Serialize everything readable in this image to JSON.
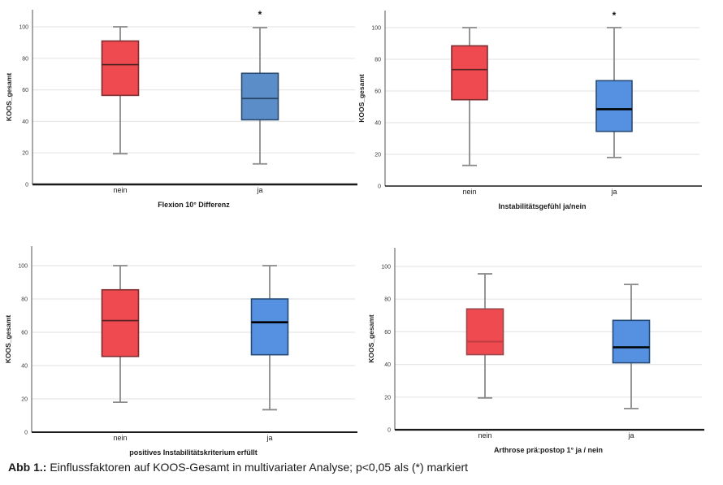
{
  "figure": {
    "caption_label": "Abb 1.:",
    "caption_text": "Einflussfaktoren auf KOOS-Gesamt in multivariater Analyse; p<0,05 als (*) markiert",
    "significance_marker": "*",
    "significance_rule": "p<0,05"
  },
  "colors": {
    "red_fill": "#ee4a4f",
    "red_border": "#7e2c2f",
    "blue_muted_fill": "#5b8ec9",
    "blue_fill": "#5591e0",
    "blue_border": "#274b77",
    "whisker": "#8a8a8a",
    "grid": "#e7e7e7",
    "axis": "#1a1a1a",
    "spine": "#6e6e6e"
  },
  "chart_data": [
    {
      "type": "box",
      "id": "flexion",
      "xlabel": "Flexion 10° Differenz",
      "ylabel": "KOOS_gesamt",
      "ylim": [
        0,
        100
      ],
      "yticks": [
        0,
        20,
        40,
        60,
        80,
        100
      ],
      "categories": [
        "nein",
        "ja"
      ],
      "grid": true,
      "boxes": [
        {
          "category": "nein",
          "fill": "#ee4a4f",
          "border": "#7e2c2f",
          "median_color": "#45201f",
          "median_width": 1.7,
          "low": 19.5,
          "q1": 56.5,
          "median": 76,
          "q3": 91,
          "high": 100,
          "significant": false
        },
        {
          "category": "ja",
          "fill": "#5b8ec9",
          "border": "#2c4a70",
          "median_color": "#274466",
          "median_width": 1.7,
          "low": 13,
          "q1": 41,
          "median": 54.5,
          "q3": 70.5,
          "high": 99.5,
          "significant": true
        }
      ]
    },
    {
      "type": "box",
      "id": "instabilitaetsgefuehl",
      "xlabel": "Instabilitätsgefühl ja/nein",
      "ylabel": "KOOS_gesamt",
      "ylim": [
        0,
        100
      ],
      "yticks": [
        0,
        20,
        40,
        60,
        80,
        100
      ],
      "categories": [
        "nein",
        "ja"
      ],
      "grid": true,
      "boxes": [
        {
          "category": "nein",
          "fill": "#ee4a4f",
          "border": "#7e2c2f",
          "median_color": "#5a2426",
          "median_width": 1.7,
          "low": 13,
          "q1": 54.5,
          "median": 73.5,
          "q3": 88.5,
          "high": 100,
          "significant": false
        },
        {
          "category": "ja",
          "fill": "#5591e0",
          "border": "#274b77",
          "median_color": "#000000",
          "median_width": 2.6,
          "low": 18,
          "q1": 34.5,
          "median": 48.5,
          "q3": 66.5,
          "high": 100,
          "significant": true
        }
      ]
    },
    {
      "type": "box",
      "id": "instabilitaetskriterium",
      "xlabel": "positives Instabilitätskriterium erfüllt",
      "ylabel": "KOOS_gesamt",
      "ylim": [
        0,
        100
      ],
      "yticks": [
        0,
        20,
        40,
        60,
        80,
        100
      ],
      "categories": [
        "nein",
        "ja"
      ],
      "grid": true,
      "boxes": [
        {
          "category": "nein",
          "fill": "#ee4a4f",
          "border": "#7e2c2f",
          "median_color": "#5a2426",
          "median_width": 1.7,
          "low": 18,
          "q1": 45.5,
          "median": 67,
          "q3": 85.5,
          "high": 100,
          "significant": false
        },
        {
          "category": "ja",
          "fill": "#5591e0",
          "border": "#274b77",
          "median_color": "#000000",
          "median_width": 2.6,
          "low": 13.5,
          "q1": 46.5,
          "median": 66,
          "q3": 80,
          "high": 100,
          "significant": false
        }
      ]
    },
    {
      "type": "box",
      "id": "arthrose",
      "xlabel": "Arthrose prä:postop 1° ja / nein",
      "ylabel": "KOOS_gesamt",
      "ylim": [
        0,
        100
      ],
      "yticks": [
        0,
        20,
        40,
        60,
        80,
        100
      ],
      "categories": [
        "nein",
        "ja"
      ],
      "grid": true,
      "boxes": [
        {
          "category": "nein",
          "fill": "#ee4a4f",
          "border": "#9a4a4c",
          "median_color": "#c03c40",
          "median_width": 2.0,
          "low": 19.5,
          "q1": 46,
          "median": 54,
          "q3": 74,
          "high": 95.5,
          "significant": false
        },
        {
          "category": "ja",
          "fill": "#5591e0",
          "border": "#274b77",
          "median_color": "#000000",
          "median_width": 2.6,
          "low": 13,
          "q1": 41,
          "median": 50.5,
          "q3": 67,
          "high": 89,
          "significant": false
        }
      ]
    }
  ]
}
